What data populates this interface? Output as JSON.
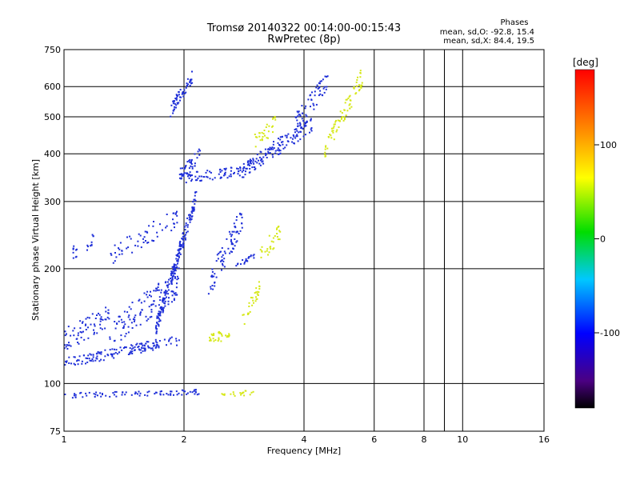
{
  "chart_data": {
    "type": "scatter",
    "title": "Tromsø 20140322 00:14:00-00:15:43",
    "subtitle": "RwPretec (8p)",
    "xlabel": "Frequency [MHz]",
    "ylabel": "Stationary phase Virtual Height [km]",
    "x_scale": "log",
    "y_scale": "log",
    "xlim": [
      1,
      16
    ],
    "ylim": [
      75,
      750
    ],
    "x_ticks": [
      1,
      2,
      4,
      6,
      8,
      10,
      16
    ],
    "x_grid_extra": [
      9
    ],
    "y_ticks": [
      75,
      100,
      200,
      300,
      400,
      500,
      600,
      750
    ],
    "grid": true,
    "phase_box": {
      "heading": "Phases",
      "line1": "mean, sd,O: -92.8, 15.4",
      "line2": "mean, sd,X:  84.4, 19.5"
    },
    "colorbar": {
      "label": "[deg]",
      "range": [
        -180,
        180
      ],
      "ticks": [
        100,
        0,
        -100
      ],
      "colormap": "rainbow"
    },
    "series": [
      {
        "polarization": "O",
        "color": "#1e2fd8",
        "segments": [
          {
            "f0": 1.0,
            "f1": 1.95,
            "h0": 113,
            "h1": 130,
            "n": 150,
            "jh": 0.03
          },
          {
            "f0": 1.0,
            "f1": 1.3,
            "h0": 130,
            "h1": 150,
            "n": 70,
            "jh": 0.07
          },
          {
            "f0": 1.3,
            "f1": 1.95,
            "h0": 135,
            "h1": 185,
            "n": 130,
            "jh": 0.09
          },
          {
            "f0": 1.7,
            "f1": 2.15,
            "h0": 140,
            "h1": 310,
            "n": 200,
            "jh": 0.05
          },
          {
            "f0": 1.3,
            "f1": 1.95,
            "h0": 215,
            "h1": 275,
            "n": 60,
            "jh": 0.06
          },
          {
            "f0": 1.05,
            "f1": 1.2,
            "h0": 220,
            "h1": 240,
            "n": 20,
            "jh": 0.04
          },
          {
            "f0": 2.3,
            "f1": 2.8,
            "h0": 180,
            "h1": 270,
            "n": 80,
            "jh": 0.08
          },
          {
            "f0": 2.7,
            "f1": 3.0,
            "h0": 205,
            "h1": 215,
            "n": 20,
            "jh": 0.02
          },
          {
            "f0": 1.85,
            "f1": 2.1,
            "h0": 520,
            "h1": 640,
            "n": 60,
            "jh": 0.04
          },
          {
            "f0": 1.95,
            "f1": 2.8,
            "h0": 345,
            "h1": 360,
            "n": 70,
            "jh": 0.03
          },
          {
            "f0": 1.95,
            "f1": 2.2,
            "h0": 350,
            "h1": 400,
            "n": 40,
            "jh": 0.04
          },
          {
            "f0": 2.8,
            "f1": 4.2,
            "h0": 360,
            "h1": 480,
            "n": 150,
            "jh": 0.05
          },
          {
            "f0": 3.8,
            "f1": 4.6,
            "h0": 480,
            "h1": 620,
            "n": 60,
            "jh": 0.06
          },
          {
            "f0": 1.0,
            "f1": 2.2,
            "h0": 93,
            "h1": 95,
            "n": 80,
            "jh": 0.015
          }
        ]
      },
      {
        "polarization": "X",
        "color": "#d6e818",
        "segments": [
          {
            "f0": 2.3,
            "f1": 2.6,
            "h0": 130,
            "h1": 135,
            "n": 30,
            "jh": 0.03
          },
          {
            "f0": 2.8,
            "f1": 3.1,
            "h0": 145,
            "h1": 180,
            "n": 30,
            "jh": 0.05
          },
          {
            "f0": 3.1,
            "f1": 3.5,
            "h0": 215,
            "h1": 250,
            "n": 30,
            "jh": 0.06
          },
          {
            "f0": 3.0,
            "f1": 3.4,
            "h0": 430,
            "h1": 480,
            "n": 30,
            "jh": 0.05
          },
          {
            "f0": 4.5,
            "f1": 5.6,
            "h0": 400,
            "h1": 640,
            "n": 80,
            "jh": 0.06
          },
          {
            "f0": 2.4,
            "f1": 3.1,
            "h0": 93,
            "h1": 95,
            "n": 20,
            "jh": 0.015
          }
        ]
      }
    ]
  }
}
